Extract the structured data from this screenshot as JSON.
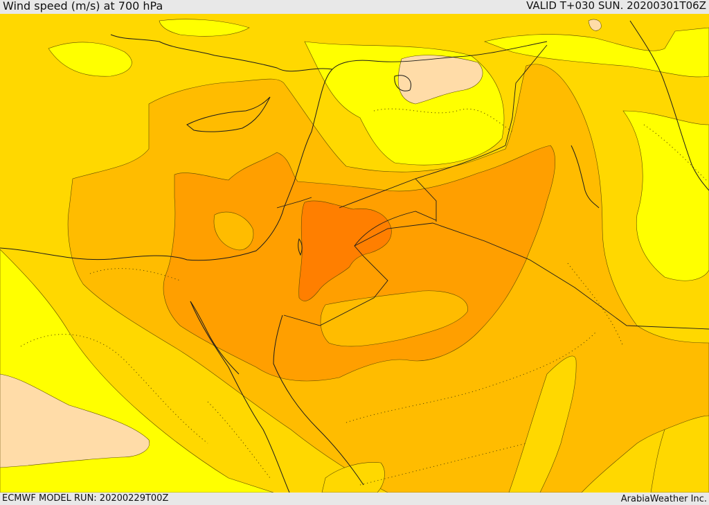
{
  "header": {
    "title": "Wind speed (m/s) at 700 hPa",
    "valid_time": "VALID T+030 SUN. 20200301T06Z"
  },
  "footer": {
    "model_run": "ECMWF MODEL RUN: 20200229T00Z",
    "credit": "ArabiaWeather Inc."
  },
  "map": {
    "field": "wind speed at 700 hPa",
    "palette": {
      "very_light": "#ffdca8",
      "light": "#ffff00",
      "medium_light": "#ffd800",
      "medium": "#ffbc00",
      "strong": "#ff9f00",
      "very_strong": "#ff7f00"
    }
  }
}
